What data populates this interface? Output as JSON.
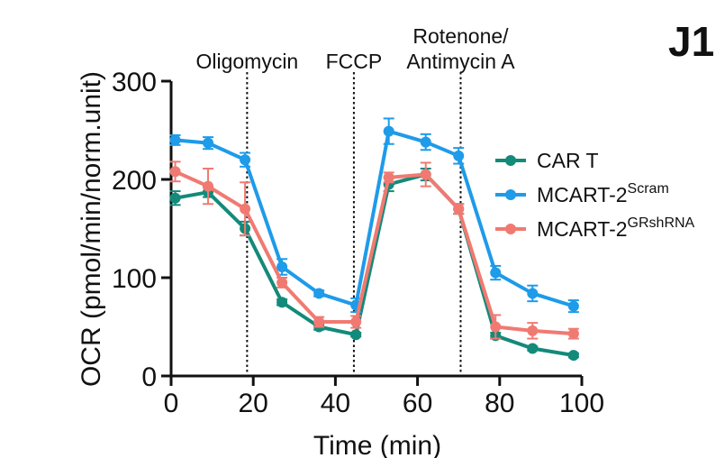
{
  "panel_label": "J1",
  "chart_data": {
    "type": "line",
    "title": "",
    "xlabel": "Time (min)",
    "ylabel": "OCR (pmol/min/norm.unit)",
    "xlim": [
      0,
      100
    ],
    "ylim": [
      0,
      300
    ],
    "xticks": [
      0,
      20,
      40,
      60,
      80,
      100
    ],
    "yticks": [
      0,
      100,
      200,
      300
    ],
    "grid": false,
    "legend_position": "right",
    "x": [
      1,
      9,
      18,
      27,
      36,
      45,
      53,
      62,
      70,
      79,
      88,
      98
    ],
    "series": [
      {
        "name": "CAR T",
        "label_base": "CAR T",
        "label_sup": "",
        "color": "#138a7a",
        "values": [
          181,
          187,
          150,
          75,
          50,
          42,
          195,
          205,
          170,
          41,
          28,
          21
        ],
        "errors": [
          7,
          5,
          7,
          3,
          3,
          2,
          7,
          6,
          5,
          3,
          2,
          2
        ]
      },
      {
        "name": "MCART-2Scram",
        "label_base": "MCART-2",
        "label_sup": "Scram",
        "color": "#1e9be9",
        "values": [
          240,
          237,
          220,
          111,
          84,
          72,
          249,
          238,
          224,
          105,
          84,
          71
        ],
        "errors": [
          5,
          6,
          7,
          8,
          3,
          7,
          13,
          8,
          8,
          7,
          8,
          6
        ]
      },
      {
        "name": "MCART-2GRshRNA",
        "label_base": "MCART-2",
        "label_sup": "GRshRNA",
        "color": "#f07a72",
        "values": [
          208,
          193,
          170,
          95,
          55,
          55,
          202,
          205,
          170,
          50,
          46,
          43
        ],
        "errors": [
          10,
          18,
          27,
          5,
          5,
          6,
          5,
          12,
          5,
          12,
          8,
          5
        ]
      }
    ],
    "annotations": [
      {
        "label_lines": [
          "Oligomycin"
        ],
        "x": 18.5
      },
      {
        "label_lines": [
          "FCCP"
        ],
        "x": 44.5
      },
      {
        "label_lines": [
          "Rotenone/",
          "Antimycin A"
        ],
        "x": 70.5
      }
    ]
  }
}
